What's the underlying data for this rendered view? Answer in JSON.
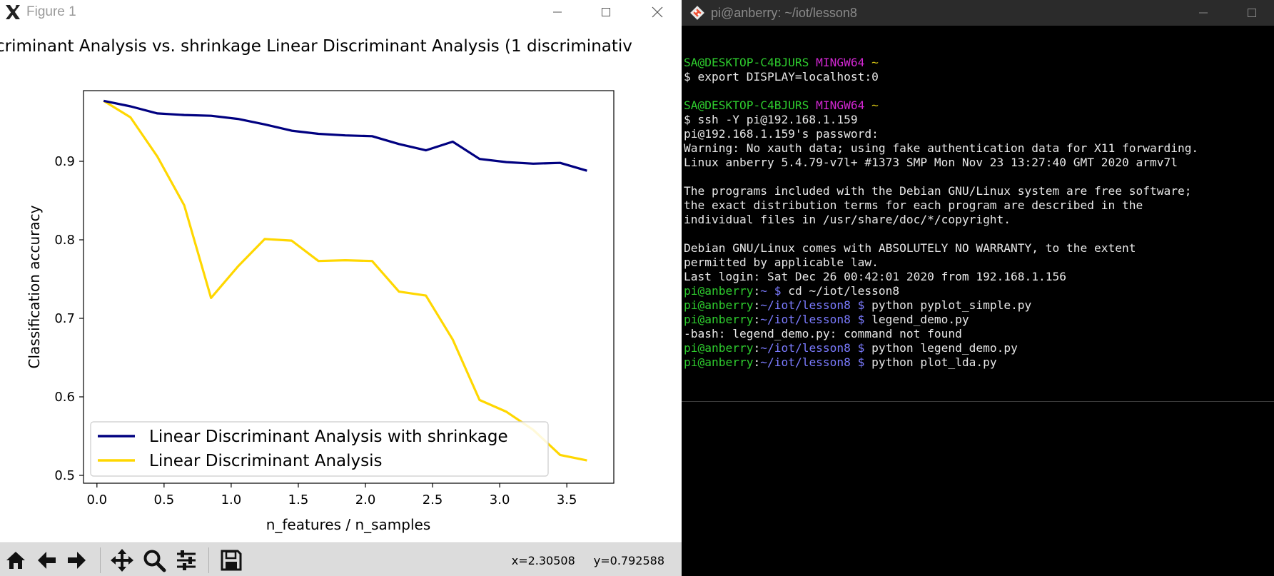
{
  "figure": {
    "window_title": "Figure 1",
    "toolbar": {
      "buttons": [
        "home-icon",
        "back-arrow-icon",
        "forward-arrow-icon",
        "pan-icon",
        "zoom-icon",
        "configure-subplots-icon",
        "save-icon"
      ],
      "coord_x": "x=2.30508",
      "coord_y": "y=0.792588"
    }
  },
  "chart_data": {
    "type": "line",
    "title": "criminant Analysis vs. shrinkage Linear Discriminant Analysis (1 discriminativ",
    "xlabel": "n_features / n_samples",
    "ylabel": "Classification accuracy",
    "xlim": [
      -0.1,
      3.85
    ],
    "ylim": [
      0.49,
      0.99
    ],
    "xticks": [
      0.0,
      0.5,
      1.0,
      1.5,
      2.0,
      2.5,
      3.0,
      3.5
    ],
    "xtick_labels": [
      "0.0",
      "0.5",
      "1.0",
      "1.5",
      "2.0",
      "2.5",
      "3.0",
      "3.5"
    ],
    "yticks": [
      0.5,
      0.6,
      0.7,
      0.8,
      0.9
    ],
    "ytick_labels": [
      "0.5",
      "0.6",
      "0.7",
      "0.8",
      "0.9"
    ],
    "x": [
      0.05,
      0.25,
      0.45,
      0.65,
      0.85,
      1.05,
      1.25,
      1.45,
      1.65,
      1.85,
      2.05,
      2.25,
      2.45,
      2.65,
      2.85,
      3.05,
      3.25,
      3.45,
      3.65
    ],
    "series": [
      {
        "name": "Linear Discriminant Analysis with shrinkage",
        "color": "#000080",
        "values": [
          0.977,
          0.97,
          0.961,
          0.959,
          0.958,
          0.954,
          0.947,
          0.939,
          0.935,
          0.933,
          0.932,
          0.922,
          0.914,
          0.925,
          0.903,
          0.899,
          0.897,
          0.898,
          0.888
        ]
      },
      {
        "name": "Linear Discriminant Analysis",
        "color": "#ffd700",
        "values": [
          0.977,
          0.956,
          0.906,
          0.844,
          0.726,
          0.766,
          0.801,
          0.799,
          0.773,
          0.774,
          0.773,
          0.734,
          0.729,
          0.673,
          0.596,
          0.581,
          0.558,
          0.526,
          0.519
        ]
      }
    ],
    "legend": "lower-left",
    "grid": false
  },
  "terminal": {
    "window_title": "pi@anberry: ~/iot/lesson8",
    "lines": [
      [],
      [
        {
          "t": "SA@DESKTOP-C4BJURS ",
          "c": "green"
        },
        {
          "t": "MINGW64 ",
          "c": "magenta"
        },
        {
          "t": "~",
          "c": "yellow"
        }
      ],
      [
        {
          "t": "$ export DISPLAY=localhost:0",
          "c": "white"
        }
      ],
      [],
      [
        {
          "t": "SA@DESKTOP-C4BJURS ",
          "c": "green"
        },
        {
          "t": "MINGW64 ",
          "c": "magenta"
        },
        {
          "t": "~",
          "c": "yellow"
        }
      ],
      [
        {
          "t": "$ ssh -Y pi@192.168.1.159",
          "c": "white"
        }
      ],
      [
        {
          "t": "pi@192.168.1.159's password:",
          "c": "white"
        }
      ],
      [
        {
          "t": "Warning: No xauth data; using fake authentication data for X11 forwarding.",
          "c": "white"
        }
      ],
      [
        {
          "t": "Linux anberry 5.4.79-v7l+ #1373 SMP Mon Nov 23 13:27:40 GMT 2020 armv7l",
          "c": "white"
        }
      ],
      [],
      [
        {
          "t": "The programs included with the Debian GNU/Linux system are free software;",
          "c": "white"
        }
      ],
      [
        {
          "t": "the exact distribution terms for each program are described in the",
          "c": "white"
        }
      ],
      [
        {
          "t": "individual files in /usr/share/doc/*/copyright.",
          "c": "white"
        }
      ],
      [],
      [
        {
          "t": "Debian GNU/Linux comes with ABSOLUTELY NO WARRANTY, to the extent",
          "c": "white"
        }
      ],
      [
        {
          "t": "permitted by applicable law.",
          "c": "white"
        }
      ],
      [
        {
          "t": "Last login: Sat Dec 26 00:42:01 2020 from 192.168.1.156",
          "c": "white"
        }
      ],
      [
        {
          "t": "pi@anberry",
          "c": "green"
        },
        {
          "t": ":",
          "c": "white"
        },
        {
          "t": "~ $",
          "c": "blue"
        },
        {
          "t": " cd ~/iot/lesson8",
          "c": "white"
        }
      ],
      [
        {
          "t": "pi@anberry",
          "c": "green"
        },
        {
          "t": ":",
          "c": "white"
        },
        {
          "t": "~/iot/lesson8 $",
          "c": "blue"
        },
        {
          "t": " python pyplot_simple.py",
          "c": "white"
        }
      ],
      [
        {
          "t": "pi@anberry",
          "c": "green"
        },
        {
          "t": ":",
          "c": "white"
        },
        {
          "t": "~/iot/lesson8 $",
          "c": "blue"
        },
        {
          "t": " legend_demo.py",
          "c": "white"
        }
      ],
      [
        {
          "t": "-bash: legend_demo.py: command not found",
          "c": "white"
        }
      ],
      [
        {
          "t": "pi@anberry",
          "c": "green"
        },
        {
          "t": ":",
          "c": "white"
        },
        {
          "t": "~/iot/lesson8 $",
          "c": "blue"
        },
        {
          "t": " python legend_demo.py",
          "c": "white"
        }
      ],
      [
        {
          "t": "pi@anberry",
          "c": "green"
        },
        {
          "t": ":",
          "c": "white"
        },
        {
          "t": "~/iot/lesson8 $",
          "c": "blue"
        },
        {
          "t": " python plot_lda.py",
          "c": "white"
        }
      ]
    ]
  }
}
